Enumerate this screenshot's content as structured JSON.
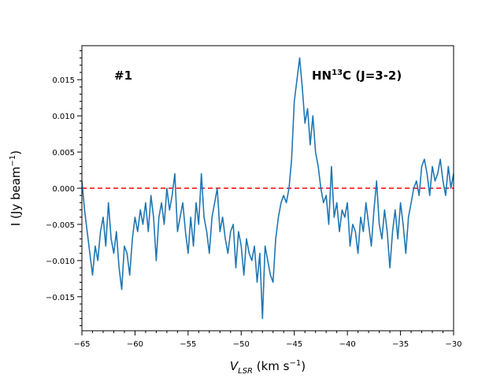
{
  "chart_data": {
    "type": "line",
    "title": "",
    "xlabel": {
      "main": "V",
      "sub": "LSR",
      "unit": " (km s",
      "unit_sup": "−1",
      "close": ")"
    },
    "ylabel": {
      "main": "I (Jy beam",
      "sup": "−1",
      "close": ")"
    },
    "xlim": [
      -65,
      -30
    ],
    "ylim": [
      -0.0197,
      0.0197
    ],
    "xticks": [
      -65,
      -60,
      -55,
      -50,
      -45,
      -40,
      -35,
      -30
    ],
    "xtick_labels": [
      "−65",
      "−60",
      "−55",
      "−50",
      "−45",
      "−40",
      "−35",
      "−30"
    ],
    "yticks": [
      -0.015,
      -0.01,
      -0.005,
      0.0,
      0.005,
      0.01,
      0.015
    ],
    "ytick_labels": [
      "−0.015",
      "−0.010",
      "−0.005",
      "0.000",
      "0.005",
      "0.010",
      "0.015"
    ],
    "grid": false,
    "annotations": {
      "panel_label": "#1",
      "line_label": {
        "main": "HN",
        "sup": "13",
        "rest": "C (J=3-2)"
      }
    },
    "reference_line": {
      "y": 0.0,
      "color": "#ff0000",
      "style": "dashed"
    },
    "series": [
      {
        "color": "#1f77b4",
        "x": [
          -65.0,
          -64.75,
          -64.5,
          -64.25,
          -64.0,
          -63.75,
          -63.5,
          -63.25,
          -63.0,
          -62.75,
          -62.5,
          -62.25,
          -62.0,
          -61.75,
          -61.5,
          -61.25,
          -61.0,
          -60.75,
          -60.5,
          -60.25,
          -60.0,
          -59.75,
          -59.5,
          -59.25,
          -59.0,
          -58.75,
          -58.5,
          -58.25,
          -58.0,
          -57.75,
          -57.5,
          -57.25,
          -57.0,
          -56.75,
          -56.5,
          -56.25,
          -56.0,
          -55.75,
          -55.5,
          -55.25,
          -55.0,
          -54.75,
          -54.5,
          -54.25,
          -54.0,
          -53.75,
          -53.5,
          -53.25,
          -53.0,
          -52.75,
          -52.5,
          -52.25,
          -52.0,
          -51.75,
          -51.5,
          -51.25,
          -51.0,
          -50.75,
          -50.5,
          -50.25,
          -50.0,
          -49.75,
          -49.5,
          -49.25,
          -49.0,
          -48.75,
          -48.5,
          -48.25,
          -48.0,
          -47.75,
          -47.5,
          -47.25,
          -47.0,
          -46.75,
          -46.5,
          -46.25,
          -46.0,
          -45.75,
          -45.5,
          -45.25,
          -45.0,
          -44.75,
          -44.5,
          -44.25,
          -44.0,
          -43.75,
          -43.5,
          -43.25,
          -43.0,
          -42.75,
          -42.5,
          -42.25,
          -42.0,
          -41.75,
          -41.5,
          -41.25,
          -41.0,
          -40.75,
          -40.5,
          -40.25,
          -40.0,
          -39.75,
          -39.5,
          -39.25,
          -39.0,
          -38.75,
          -38.5,
          -38.25,
          -38.0,
          -37.75,
          -37.5,
          -37.25,
          -37.0,
          -36.75,
          -36.5,
          -36.25,
          -36.0,
          -35.75,
          -35.5,
          -35.25,
          -35.0,
          -34.75,
          -34.5,
          -34.25,
          -34.0,
          -33.75,
          -33.5,
          -33.25,
          -33.0,
          -32.75,
          -32.5,
          -32.25,
          -32.0,
          -31.75,
          -31.5,
          -31.25,
          -31.0,
          -30.75,
          -30.5,
          -30.25,
          -30.0
        ],
        "y": [
          0.001,
          -0.003,
          -0.006,
          -0.009,
          -0.012,
          -0.008,
          -0.01,
          -0.006,
          -0.004,
          -0.008,
          -0.002,
          -0.007,
          -0.009,
          -0.006,
          -0.011,
          -0.014,
          -0.008,
          -0.009,
          -0.012,
          -0.007,
          -0.004,
          -0.006,
          -0.003,
          -0.005,
          -0.002,
          -0.006,
          -0.001,
          -0.004,
          -0.01,
          -0.004,
          -0.002,
          -0.005,
          0.0,
          -0.003,
          -0.001,
          0.002,
          -0.006,
          -0.004,
          -0.002,
          -0.006,
          -0.009,
          -0.004,
          -0.008,
          -0.002,
          -0.005,
          0.002,
          -0.004,
          -0.006,
          -0.009,
          -0.004,
          -0.002,
          0.0,
          -0.006,
          -0.004,
          -0.007,
          -0.009,
          -0.006,
          -0.005,
          -0.011,
          -0.006,
          -0.008,
          -0.012,
          -0.007,
          -0.009,
          -0.01,
          -0.008,
          -0.013,
          -0.009,
          -0.018,
          -0.008,
          -0.01,
          -0.012,
          -0.013,
          -0.007,
          -0.004,
          -0.002,
          -0.001,
          -0.002,
          0.0,
          0.004,
          0.012,
          0.015,
          0.018,
          0.014,
          0.009,
          0.011,
          0.006,
          0.01,
          0.005,
          0.003,
          0.0,
          -0.002,
          -0.001,
          -0.005,
          0.003,
          -0.004,
          -0.002,
          -0.006,
          -0.003,
          -0.004,
          -0.002,
          -0.008,
          -0.005,
          -0.006,
          -0.009,
          -0.004,
          -0.006,
          -0.002,
          -0.005,
          -0.008,
          -0.003,
          0.001,
          -0.005,
          -0.007,
          -0.003,
          -0.006,
          -0.011,
          -0.006,
          -0.003,
          -0.007,
          -0.002,
          -0.005,
          -0.009,
          -0.004,
          -0.002,
          0.0,
          0.001,
          -0.001,
          0.003,
          0.004,
          0.002,
          -0.001,
          0.003,
          0.001,
          0.002,
          0.004,
          0.001,
          -0.001,
          0.003,
          0.0,
          0.002
        ]
      }
    ]
  }
}
